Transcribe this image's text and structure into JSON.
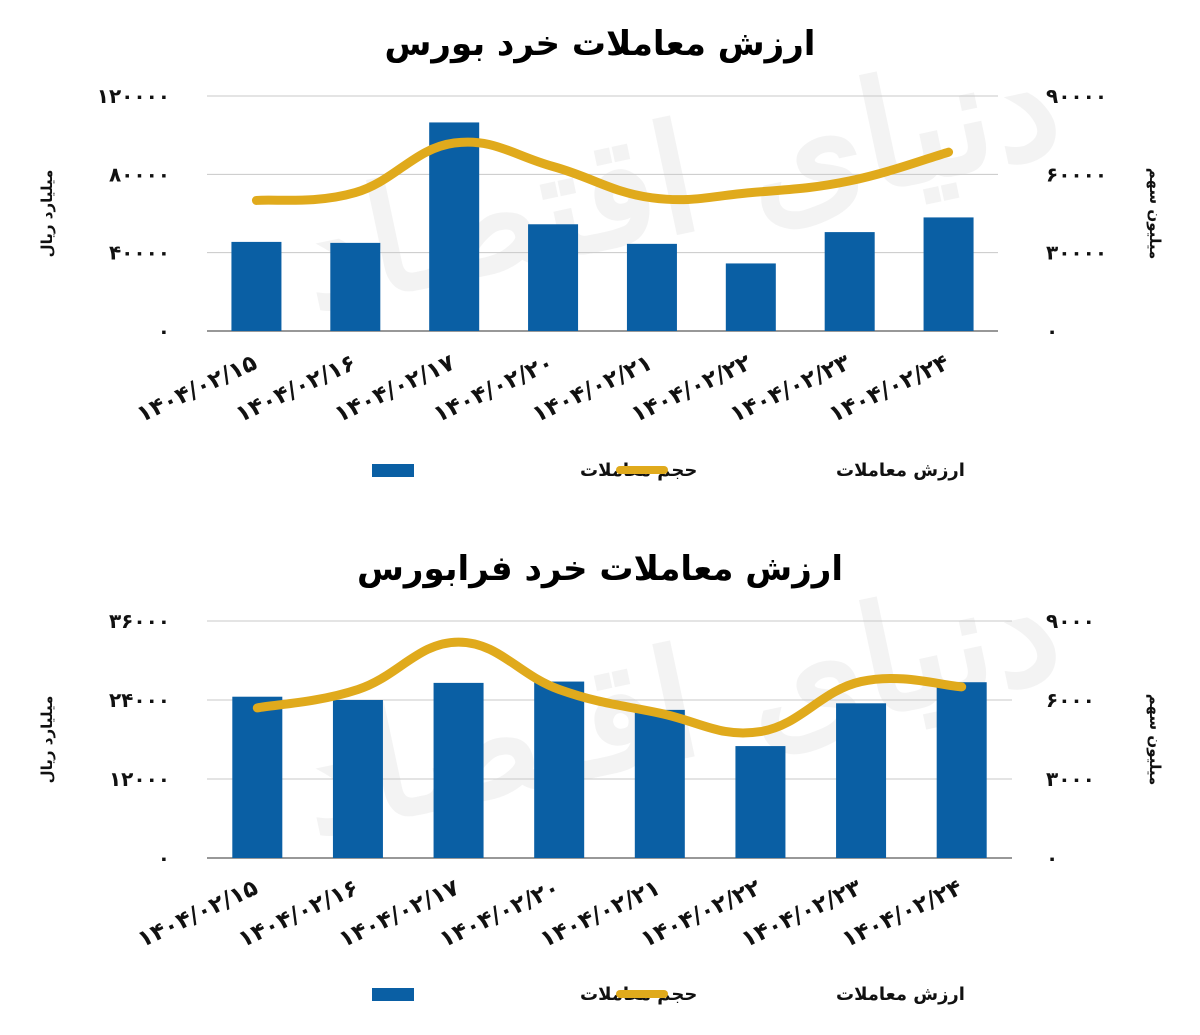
{
  "colors": {
    "bar": "#0a5fa4",
    "line": "#e0aa1c",
    "grid": "#c8c8c8",
    "axis": "#333333"
  },
  "watermark": "دنیای اقتصاد",
  "chart_data": [
    {
      "type": "bar",
      "title": "ارزش معاملات خرد بورس",
      "ylabel": "میلیارد ریال",
      "y2label": "میلیون سهم",
      "categories": [
        "1404/02/15",
        "1404/02/16",
        "1404/02/17",
        "1404/02/20",
        "1404/02/21",
        "1404/02/22",
        "1404/02/23",
        "1404/02/24"
      ],
      "category_labels": [
        "۱۴۰۴/۰۲/۱۵",
        "۱۴۰۴/۰۲/۱۶",
        "۱۴۰۴/۰۲/۱۷",
        "۱۴۰۴/۰۲/۲۰",
        "۱۴۰۴/۰۲/۲۱",
        "۱۴۰۴/۰۲/۲۲",
        "۱۴۰۴/۰۲/۲۳",
        "۱۴۰۴/۰۲/۲۴"
      ],
      "ylim": [
        0,
        120000
      ],
      "y2lim": [
        0,
        90000
      ],
      "yticks": [
        0,
        40000,
        80000,
        120000
      ],
      "y2ticks": [
        0,
        30000,
        60000,
        90000
      ],
      "ytick_labels": [
        "۰",
        "۴۰۰۰۰",
        "۸۰۰۰۰",
        "۱۲۰۰۰۰"
      ],
      "y2tick_labels": [
        "۰",
        "۳۰۰۰۰",
        "۶۰۰۰۰",
        "۹۰۰۰۰"
      ],
      "grid": true,
      "legend_position": "bottom",
      "series": [
        {
          "name": "حجم معاملات",
          "type": "bar",
          "axis": "left",
          "values": [
            45500,
            45000,
            106500,
            54500,
            44500,
            34500,
            50500,
            58000
          ]
        },
        {
          "name": "ارزش معاملات",
          "type": "line",
          "axis": "right",
          "values": [
            50000,
            53000,
            72000,
            63000,
            51000,
            53000,
            57500,
            68500
          ]
        }
      ]
    },
    {
      "type": "bar",
      "title": "ارزش معاملات خرد فرابورس",
      "ylabel": "میلیارد ریال",
      "y2label": "میلیون سهم",
      "categories": [
        "1404/02/15",
        "1404/02/16",
        "1404/02/17",
        "1404/02/20",
        "1404/02/21",
        "1404/02/22",
        "1404/02/23",
        "1404/02/24"
      ],
      "category_labels": [
        "۱۴۰۴/۰۲/۱۵",
        "۱۴۰۴/۰۲/۱۶",
        "۱۴۰۴/۰۲/۱۷",
        "۱۴۰۴/۰۲/۲۰",
        "۱۴۰۴/۰۲/۲۱",
        "۱۴۰۴/۰۲/۲۲",
        "۱۴۰۴/۰۲/۲۳",
        "۱۴۰۴/۰۲/۲۴"
      ],
      "ylim": [
        0,
        36000
      ],
      "y2lim": [
        0,
        9000
      ],
      "yticks": [
        0,
        12000,
        24000,
        36000
      ],
      "y2ticks": [
        0,
        3000,
        6000,
        9000
      ],
      "ytick_labels": [
        "۰",
        "۱۲۰۰۰",
        "۲۴۰۰۰",
        "۳۶۰۰۰"
      ],
      "y2tick_labels": [
        "۰",
        "۳۰۰۰",
        "۶۰۰۰",
        "۹۰۰۰"
      ],
      "grid": true,
      "legend_position": "bottom",
      "series": [
        {
          "name": "حجم معاملات",
          "type": "bar",
          "axis": "left",
          "values": [
            24500,
            24000,
            26600,
            26800,
            22500,
            17000,
            23500,
            26700
          ]
        },
        {
          "name": "ارزش معاملات",
          "type": "line",
          "axis": "right",
          "values": [
            5700,
            6400,
            8200,
            6400,
            5500,
            4800,
            6700,
            6500
          ]
        }
      ]
    }
  ]
}
